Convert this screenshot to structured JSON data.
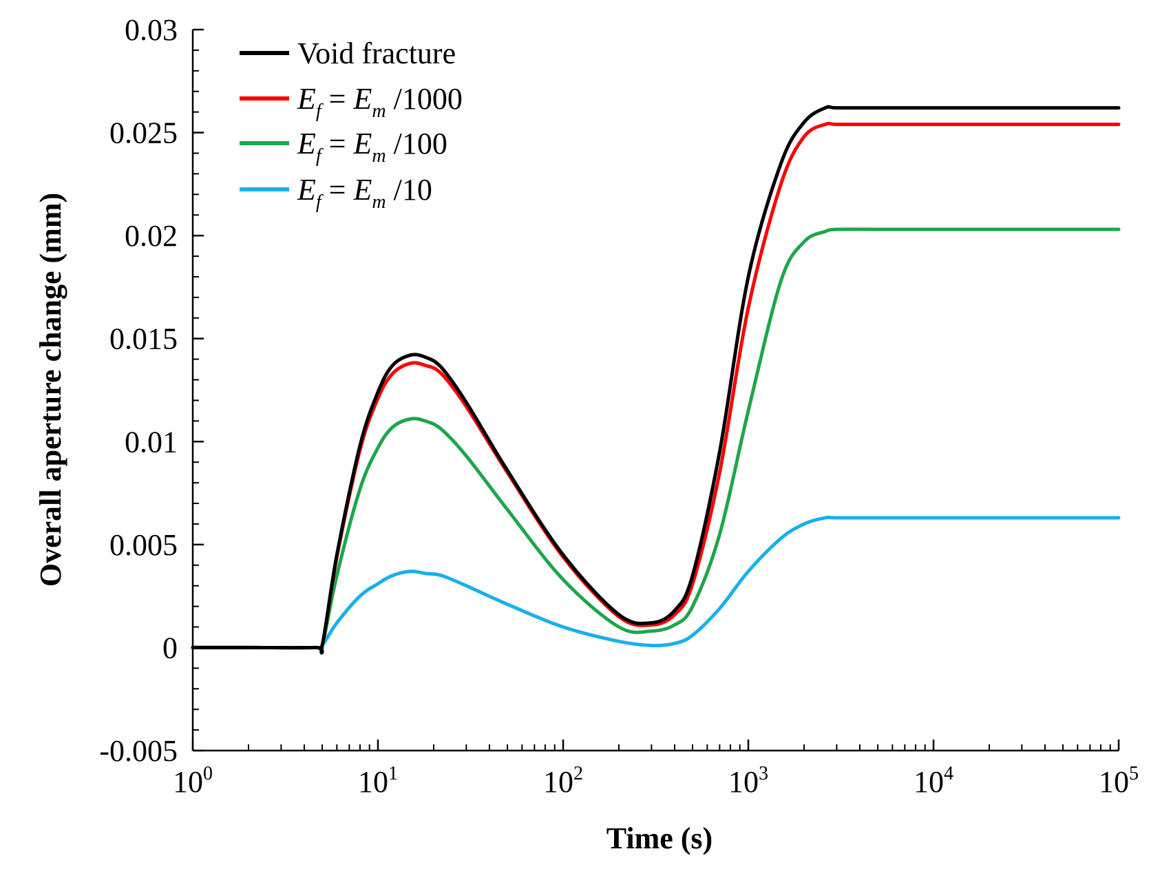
{
  "chart_data": {
    "type": "line",
    "title": "",
    "xlabel": "Time (s)",
    "ylabel": "Overall aperture change (mm)",
    "x_scale": "log",
    "x_range": [
      1,
      100000
    ],
    "ylim": [
      -0.005,
      0.03
    ],
    "grid": false,
    "legend_position": "top-left",
    "x_tick_labels": [
      {
        "base": "10",
        "exp": "0"
      },
      {
        "base": "10",
        "exp": "1"
      },
      {
        "base": "10",
        "exp": "2"
      },
      {
        "base": "10",
        "exp": "3"
      },
      {
        "base": "10",
        "exp": "4"
      },
      {
        "base": "10",
        "exp": "5"
      }
    ],
    "y_tick_labels": [
      "-0.005",
      "0",
      "0.005",
      "0.01",
      "0.015",
      "0.02",
      "0.025",
      "0.03"
    ],
    "series": [
      {
        "name": "Void fracture",
        "legend": {
          "plain": "Void fracture"
        },
        "color": "#000000",
        "x": [
          1,
          2,
          4.6,
          5,
          6,
          8,
          10,
          12,
          15,
          18,
          22,
          30,
          50,
          100,
          200,
          300,
          400,
          500,
          700,
          1000,
          1500,
          2000,
          2600,
          3000,
          5000,
          10000,
          100000
        ],
        "y": [
          0,
          0,
          0,
          0.0001,
          0.0045,
          0.0098,
          0.0124,
          0.0137,
          0.0142,
          0.0141,
          0.0136,
          0.0119,
          0.0086,
          0.0045,
          0.0016,
          0.0012,
          0.0018,
          0.0035,
          0.0095,
          0.018,
          0.0235,
          0.0255,
          0.0262,
          0.0262,
          0.0262,
          0.0262,
          0.0262
        ]
      },
      {
        "name": "E_f = E_m/1000",
        "legend": {
          "lhs": "E",
          "lhs_sub": "f",
          "eq": "=",
          "rhs": "E",
          "rhs_sub": "m",
          "div": "/1000"
        },
        "color": "#ff0000",
        "x": [
          1,
          2,
          4.6,
          5,
          6,
          8,
          10,
          12,
          15,
          18,
          22,
          30,
          50,
          100,
          200,
          300,
          400,
          500,
          700,
          1000,
          1500,
          2000,
          2600,
          3000,
          5000,
          10000,
          100000
        ],
        "y": [
          0,
          0,
          0,
          0.0001,
          0.0044,
          0.0096,
          0.0121,
          0.0133,
          0.0138,
          0.0137,
          0.0133,
          0.0117,
          0.0085,
          0.0044,
          0.0015,
          0.0011,
          0.0016,
          0.0031,
          0.0085,
          0.0165,
          0.0225,
          0.0248,
          0.0254,
          0.0254,
          0.0254,
          0.0254,
          0.0254
        ]
      },
      {
        "name": "E_f = E_m/100",
        "legend": {
          "lhs": "E",
          "lhs_sub": "f",
          "eq": "=",
          "rhs": "E",
          "rhs_sub": "m",
          "div": "/100"
        },
        "color": "#1ea64a",
        "x": [
          1,
          2,
          4.6,
          5,
          6,
          8,
          10,
          12,
          15,
          18,
          22,
          30,
          50,
          100,
          200,
          300,
          400,
          500,
          700,
          1000,
          1500,
          2000,
          2600,
          3000,
          5000,
          10000,
          100000
        ],
        "y": [
          0,
          0,
          0,
          0.0001,
          0.0035,
          0.0077,
          0.0097,
          0.0107,
          0.0111,
          0.011,
          0.0106,
          0.0093,
          0.0067,
          0.0033,
          0.001,
          0.0008,
          0.0011,
          0.002,
          0.0055,
          0.0115,
          0.0178,
          0.0197,
          0.0202,
          0.0203,
          0.0203,
          0.0203,
          0.0203
        ]
      },
      {
        "name": "E_f = E_m/10",
        "legend": {
          "lhs": "E",
          "lhs_sub": "f",
          "eq": "=",
          "rhs": "E",
          "rhs_sub": "m",
          "div": "/10"
        },
        "color": "#1aafeb",
        "x": [
          1,
          2,
          4.6,
          5,
          6,
          8,
          10,
          12,
          15,
          18,
          22,
          30,
          50,
          100,
          200,
          300,
          400,
          500,
          700,
          1000,
          1500,
          2000,
          2600,
          3000,
          5000,
          10000,
          100000
        ],
        "y": [
          0,
          0,
          0,
          0.0001,
          0.0012,
          0.0025,
          0.0031,
          0.0035,
          0.0037,
          0.0036,
          0.0035,
          0.003,
          0.0021,
          0.001,
          0.0003,
          0.0001,
          0.0002,
          0.0006,
          0.0019,
          0.0037,
          0.0053,
          0.006,
          0.0063,
          0.0063,
          0.0063,
          0.0063,
          0.0063
        ]
      }
    ]
  }
}
